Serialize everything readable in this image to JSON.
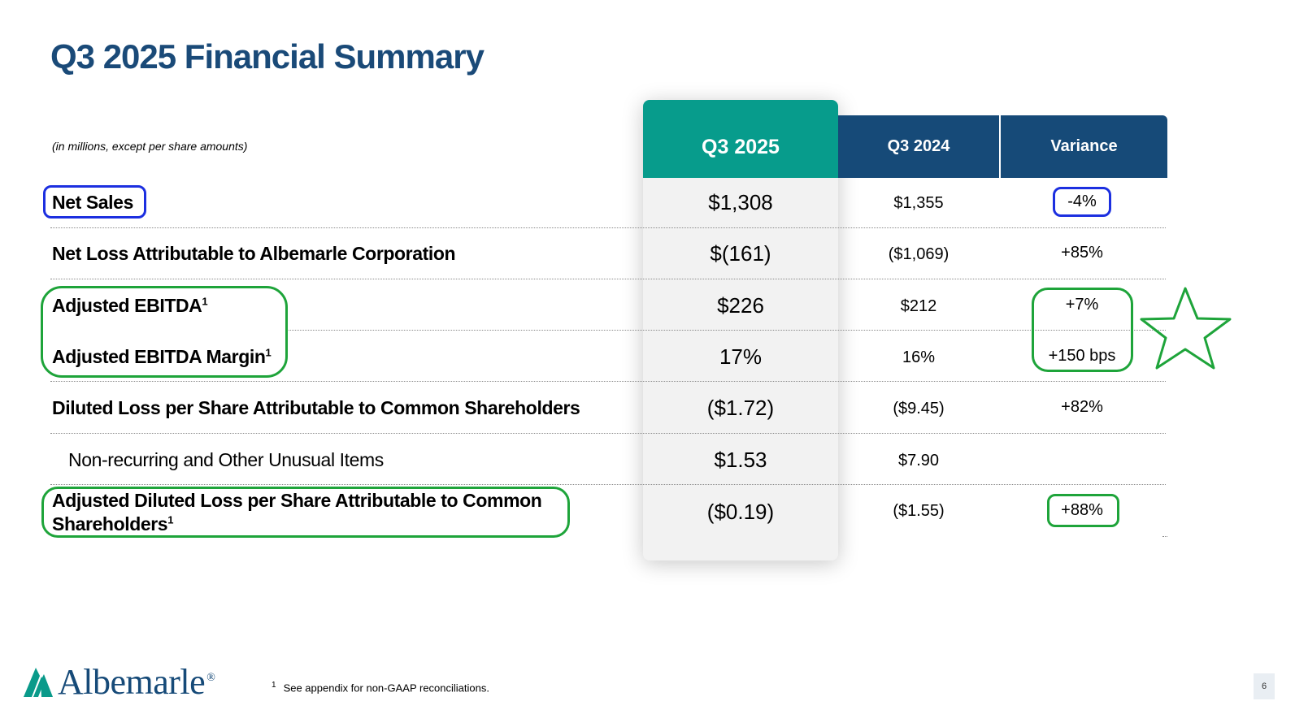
{
  "title": "Q3 2025 Financial Summary",
  "units_note": "(in millions, except per share amounts)",
  "columns": {
    "current": "Q3 2025",
    "prior": "Q3 2024",
    "variance": "Variance"
  },
  "rows": [
    {
      "label": "Net Sales",
      "footnote": "",
      "current": "$1,308",
      "prior": "$1,355",
      "variance": "-4%"
    },
    {
      "label": "Net Loss Attributable to Albemarle Corporation",
      "footnote": "",
      "current": "$(161)",
      "prior": "($1,069)",
      "variance": "+85%"
    },
    {
      "label": "Adjusted EBITDA",
      "footnote": "1",
      "current": "$226",
      "prior": "$212",
      "variance": "+7%"
    },
    {
      "label": "Adjusted EBITDA Margin",
      "footnote": "1",
      "current": "17%",
      "prior": "16%",
      "variance": "+150 bps"
    },
    {
      "label": "Diluted Loss per Share Attributable to Common Shareholders",
      "footnote": "",
      "current": "($1.72)",
      "prior": "($9.45)",
      "variance": "+82%"
    },
    {
      "label": "Non-recurring and Other Unusual Items",
      "footnote": "",
      "current": "$1.53",
      "prior": "$7.90",
      "variance": ""
    },
    {
      "label_line1": "Adjusted Diluted Loss per Share Attributable to Common",
      "label_line2": "Shareholders",
      "footnote": "1",
      "current": "($0.19)",
      "prior": "($1.55)",
      "variance": "+88%"
    }
  ],
  "footnote": {
    "marker": "1",
    "text": "See appendix for non-GAAP reconciliations."
  },
  "logo": {
    "name": "Albemarle",
    "mark": "®"
  },
  "page_number": "6",
  "colors": {
    "title": "#1a4a78",
    "highlight_header": "#079c8c",
    "header": "#164a78",
    "annotation_blue": "#1c2fe0",
    "annotation_green": "#1ea43a"
  }
}
